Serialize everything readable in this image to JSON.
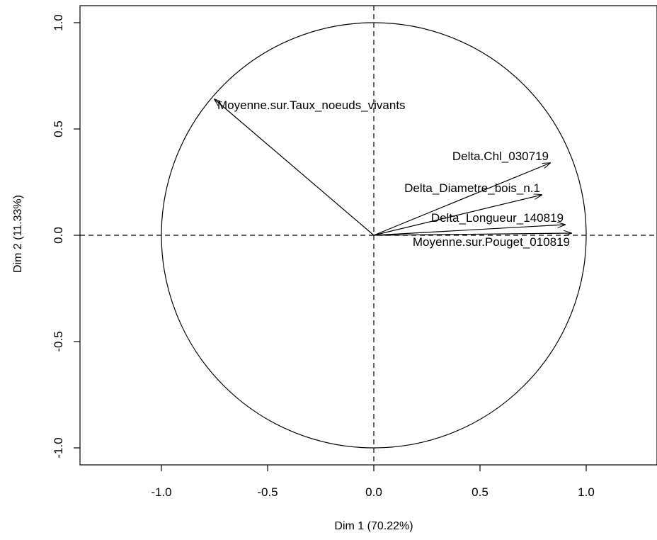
{
  "chart_data": {
    "type": "scatter",
    "subtype": "pca-correlation-circle",
    "title": "",
    "xlabel": "Dim 1 (70.22%)",
    "ylabel": "Dim 2 (11.33%)",
    "xlim": [
      -1.35,
      1.35
    ],
    "ylim": [
      -1.08,
      1.08
    ],
    "x_ticks": [
      -1.0,
      -0.5,
      0.0,
      0.5,
      1.0
    ],
    "x_tick_labels": [
      "-1.0",
      "-0.5",
      "0.0",
      "0.5",
      "1.0"
    ],
    "y_ticks": [
      -1.0,
      -0.5,
      0.0,
      0.5,
      1.0
    ],
    "y_tick_labels": [
      "-1.0",
      "-0.5",
      "0.0",
      "0.5",
      "1.0"
    ],
    "unit_circle": true,
    "reference_lines": {
      "x": 0,
      "y": 0,
      "style": "dashed"
    },
    "grid": false,
    "variables": [
      {
        "name": "Moyenne.sur.Taux_noeuds_vivants",
        "x": -0.75,
        "y": 0.64
      },
      {
        "name": "Delta.Chl_030719",
        "x": 0.83,
        "y": 0.34
      },
      {
        "name": "Delta_Diametre_bois_n.1",
        "x": 0.79,
        "y": 0.19
      },
      {
        "name": "Delta_Longueur_140819",
        "x": 0.9,
        "y": 0.05
      },
      {
        "name": "Moyenne.sur.Pouget_010819",
        "x": 0.93,
        "y": 0.01
      }
    ],
    "colors": {
      "lines": "#000000",
      "background": "#ffffff"
    }
  }
}
